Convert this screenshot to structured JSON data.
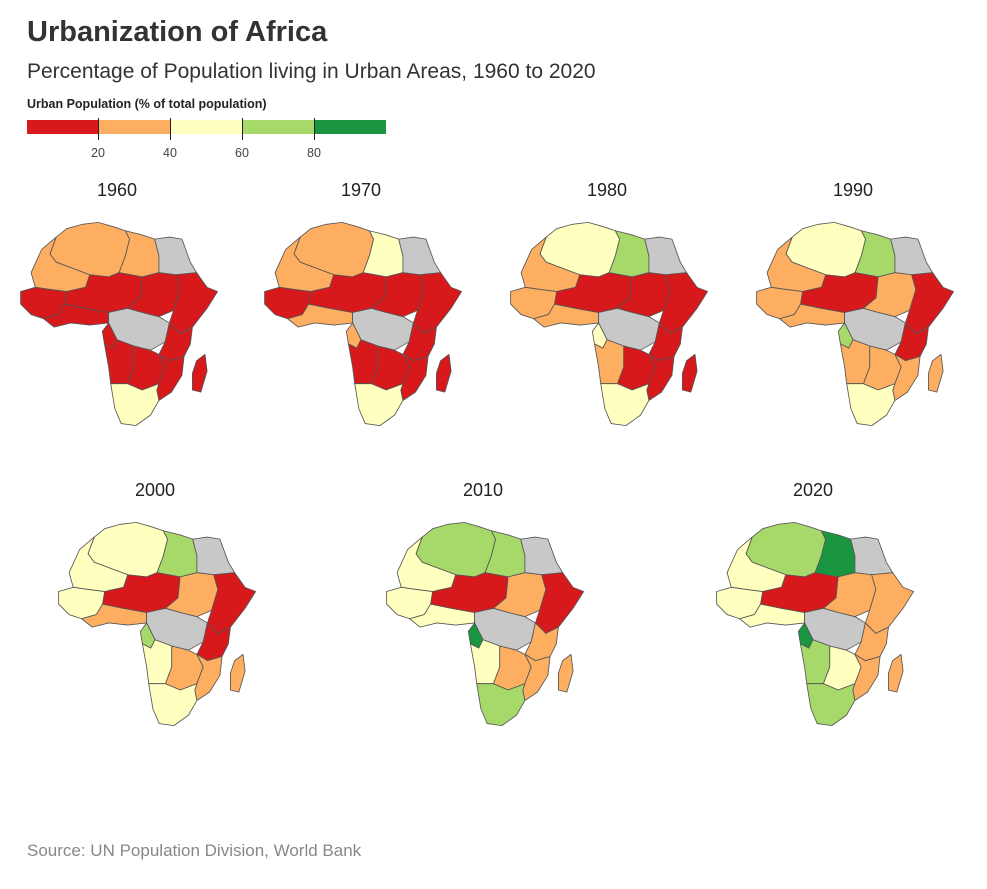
{
  "header": {
    "title": "Urbanization of Africa",
    "subtitle": "Percentage of Population living in Urban Areas, 1960 to 2020"
  },
  "legend": {
    "title": "Urban Population (% of total population)",
    "ticks": [
      "20",
      "40",
      "60",
      "80"
    ],
    "tick_values": [
      20,
      40,
      60,
      80
    ],
    "colors": [
      "#d7191c",
      "#fdae61",
      "#ffffbf",
      "#a6d96a",
      "#1a9641"
    ]
  },
  "map_style": {
    "no_data_color": "#c8c8c8",
    "border_color": "#555555"
  },
  "maps": [
    {
      "year": "1960",
      "regions": {
        "maghreb": "#fdae61",
        "western_sahara": "#fdae61",
        "libya": "#fdae61",
        "egypt": "#c8c8c8",
        "west_africa_west": "#d7191c",
        "west_africa_coast": "#d7191c",
        "sahel": "#d7191c",
        "sudan": "#d7191c",
        "horn": "#d7191c",
        "central": "#c8c8c8",
        "gabon_congo": "#d7191c",
        "east": "#d7191c",
        "angola": "#d7191c",
        "southern_central": "#d7191c",
        "mozambique": "#d7191c",
        "southern": "#ffffbf",
        "madagascar": "#d7191c"
      }
    },
    {
      "year": "1970",
      "regions": {
        "maghreb": "#fdae61",
        "western_sahara": "#fdae61",
        "libya": "#ffffbf",
        "egypt": "#c8c8c8",
        "west_africa_west": "#d7191c",
        "west_africa_coast": "#fdae61",
        "sahel": "#d7191c",
        "sudan": "#d7191c",
        "horn": "#d7191c",
        "central": "#c8c8c8",
        "gabon_congo": "#fdae61",
        "east": "#d7191c",
        "angola": "#d7191c",
        "southern_central": "#d7191c",
        "mozambique": "#d7191c",
        "southern": "#ffffbf",
        "madagascar": "#d7191c"
      }
    },
    {
      "year": "1980",
      "regions": {
        "maghreb": "#ffffbf",
        "western_sahara": "#fdae61",
        "libya": "#a6d96a",
        "egypt": "#c8c8c8",
        "west_africa_west": "#fdae61",
        "west_africa_coast": "#fdae61",
        "sahel": "#d7191c",
        "sudan": "#d7191c",
        "horn": "#d7191c",
        "central": "#c8c8c8",
        "gabon_congo": "#ffffbf",
        "east": "#d7191c",
        "angola": "#fdae61",
        "southern_central": "#d7191c",
        "mozambique": "#d7191c",
        "southern": "#ffffbf",
        "madagascar": "#d7191c"
      }
    },
    {
      "year": "1990",
      "regions": {
        "maghreb": "#ffffbf",
        "western_sahara": "#fdae61",
        "libya": "#a6d96a",
        "egypt": "#c8c8c8",
        "west_africa_west": "#fdae61",
        "west_africa_coast": "#fdae61",
        "sahel": "#d7191c",
        "sudan": "#fdae61",
        "horn": "#d7191c",
        "central": "#c8c8c8",
        "gabon_congo": "#a6d96a",
        "east": "#d7191c",
        "angola": "#fdae61",
        "southern_central": "#fdae61",
        "mozambique": "#fdae61",
        "southern": "#ffffbf",
        "madagascar": "#fdae61"
      }
    },
    {
      "year": "2000",
      "regions": {
        "maghreb": "#ffffbf",
        "western_sahara": "#ffffbf",
        "libya": "#a6d96a",
        "egypt": "#c8c8c8",
        "west_africa_west": "#ffffbf",
        "west_africa_coast": "#fdae61",
        "sahel": "#d7191c",
        "sudan": "#fdae61",
        "horn": "#d7191c",
        "central": "#c8c8c8",
        "gabon_congo": "#a6d96a",
        "east": "#d7191c",
        "angola": "#ffffbf",
        "southern_central": "#fdae61",
        "mozambique": "#fdae61",
        "southern": "#ffffbf",
        "madagascar": "#fdae61"
      }
    },
    {
      "year": "2010",
      "regions": {
        "maghreb": "#a6d96a",
        "western_sahara": "#ffffbf",
        "libya": "#a6d96a",
        "egypt": "#c8c8c8",
        "west_africa_west": "#ffffbf",
        "west_africa_coast": "#ffffbf",
        "sahel": "#d7191c",
        "sudan": "#fdae61",
        "horn": "#d7191c",
        "central": "#c8c8c8",
        "gabon_congo": "#1a9641",
        "east": "#fdae61",
        "angola": "#ffffbf",
        "southern_central": "#fdae61",
        "mozambique": "#fdae61",
        "southern": "#a6d96a",
        "madagascar": "#fdae61"
      }
    },
    {
      "year": "2020",
      "regions": {
        "maghreb": "#a6d96a",
        "western_sahara": "#ffffbf",
        "libya": "#1a9641",
        "egypt": "#c8c8c8",
        "west_africa_west": "#ffffbf",
        "west_africa_coast": "#ffffbf",
        "sahel": "#d7191c",
        "sudan": "#fdae61",
        "horn": "#fdae61",
        "central": "#c8c8c8",
        "gabon_congo": "#1a9641",
        "east": "#fdae61",
        "angola": "#a6d96a",
        "southern_central": "#ffffbf",
        "mozambique": "#fdae61",
        "southern": "#a6d96a",
        "madagascar": "#fdae61"
      }
    }
  ],
  "footer": {
    "source": "Source: UN Population Division, World Bank"
  }
}
